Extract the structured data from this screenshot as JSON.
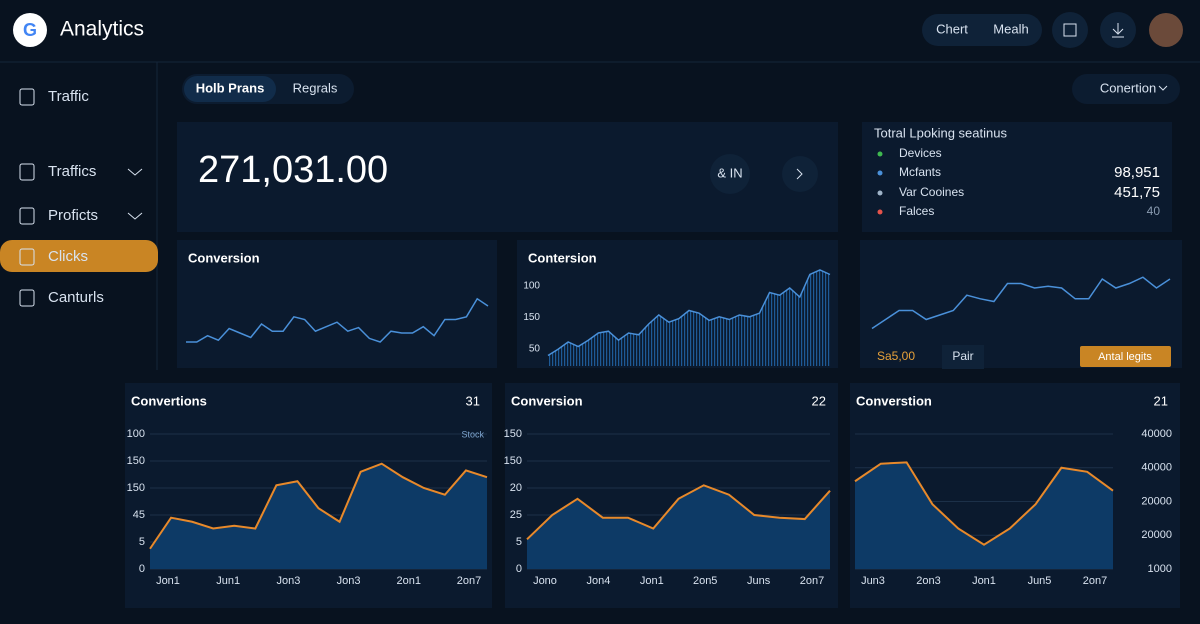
{
  "header": {
    "logo": "G",
    "title": "Analytics",
    "buttons": [
      "Chert",
      "Mealh"
    ]
  },
  "sidebar": {
    "items": [
      "Traffic",
      "Traffics",
      "Proficts",
      "Clicks",
      "Canturls"
    ]
  },
  "tabs": [
    "Holb Prans",
    "Regrals"
  ],
  "dropdown": "Conertion",
  "summary": {
    "value": "271,031.00",
    "button": "& IN"
  },
  "panel": {
    "title": "Totral Lpoking seatinus",
    "rows": [
      {
        "label": "Devices"
      },
      {
        "label": "Mcfants",
        "value": "98,951"
      },
      {
        "label": "Var Cooines",
        "value": "451,75"
      },
      {
        "label": "Falces",
        "value": "40"
      }
    ]
  },
  "line_charts": [
    {
      "title": "Conversion",
      "values": [
        20,
        20,
        27,
        22,
        35,
        30,
        25,
        40,
        32,
        32,
        48,
        45,
        32,
        37,
        42,
        32,
        36,
        24,
        20,
        32,
        30,
        30,
        37,
        27,
        45,
        45,
        48,
        68,
        60
      ]
    },
    {
      "title": "Contersion",
      "y_labels": [
        "100",
        "150",
        "50"
      ],
      "values": [
        5,
        12,
        20,
        15,
        22,
        30,
        32,
        22,
        30,
        28,
        40,
        50,
        42,
        46,
        55,
        52,
        44,
        48,
        45,
        50,
        48,
        52,
        75,
        72,
        80,
        70,
        95,
        100,
        95
      ]
    },
    {
      "values": [
        35,
        45,
        55,
        55,
        45,
        50,
        55,
        72,
        68,
        65,
        85,
        85,
        80,
        82,
        80,
        68,
        68,
        90,
        80,
        85,
        92,
        80,
        90
      ],
      "notes": [
        "Sa5,00",
        "Pair"
      ],
      "button": "Antal legits"
    }
  ],
  "area_charts": [
    {
      "title": "Convertions",
      "count": "31",
      "legend": "Stock",
      "y_labels": [
        "100",
        "150",
        "150",
        "45",
        "5",
        "0"
      ],
      "x_labels": [
        "Jon1",
        "Jun1",
        "Jon3",
        "Jon3",
        "2on1",
        "2on7"
      ],
      "y_side": "left",
      "values": [
        15,
        38,
        35,
        30,
        32,
        30,
        62,
        65,
        45,
        35,
        72,
        78,
        68,
        60,
        55,
        73,
        68
      ]
    },
    {
      "title": "Conversion",
      "count": "22",
      "y_labels": [
        "150",
        "150",
        "20",
        "25",
        "5",
        "0"
      ],
      "x_labels": [
        "Jono",
        "Jon4",
        "Jon1",
        "2on5",
        "Juns",
        "2on7"
      ],
      "y_side": "left",
      "values": [
        22,
        40,
        52,
        38,
        38,
        30,
        52,
        62,
        55,
        40,
        38,
        37,
        58
      ]
    },
    {
      "title": "Converstion",
      "count": "21",
      "y_labels": [
        "40000",
        "40000",
        "20000",
        "20000",
        "1000"
      ],
      "x_labels": [
        "Jun3",
        "2on3",
        "Jon1",
        "Jun5",
        "2on7"
      ],
      "y_side": "right",
      "values": [
        65,
        78,
        79,
        48,
        30,
        18,
        30,
        48,
        75,
        72,
        58
      ]
    }
  ]
}
